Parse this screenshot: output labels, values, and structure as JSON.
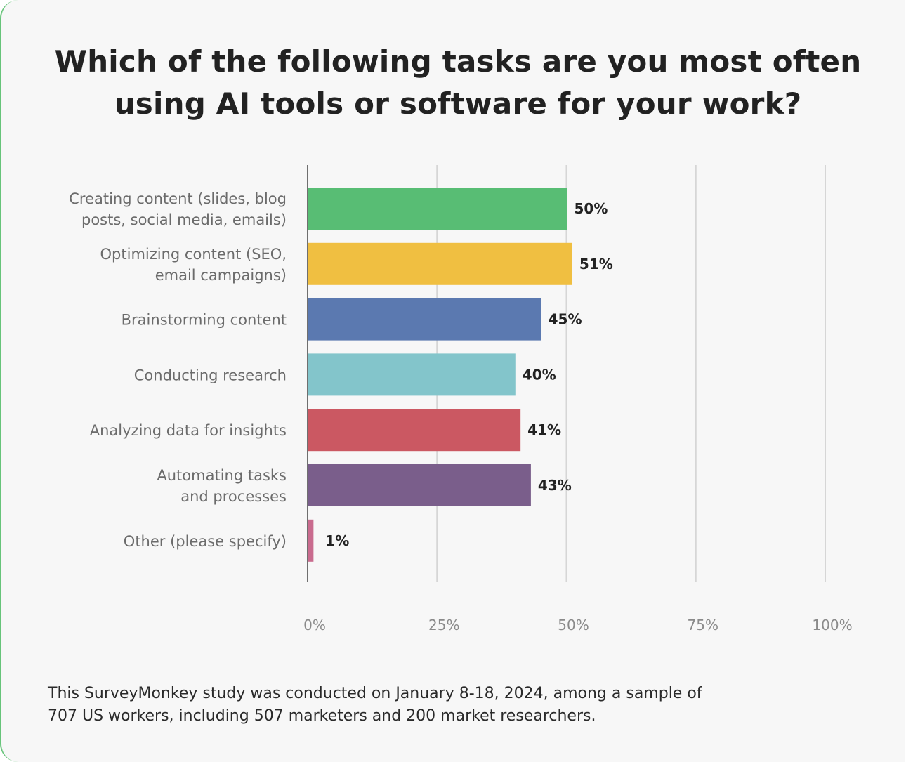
{
  "chart_data": {
    "type": "bar",
    "orientation": "horizontal",
    "title": "Which of the following tasks are you most often using AI tools or software for your work?",
    "title_lines": [
      "Which of the following tasks are you most often",
      "using AI tools or software for your work?"
    ],
    "categories": [
      "Creating content (slides, blog posts, social media, emails)",
      "Optimizing content (SEO, email campaigns)",
      "Brainstorming content",
      "Conducting research",
      "Analyzing data for insights",
      "Automating tasks and processes",
      "Other (please specify)"
    ],
    "category_lines": [
      [
        "Creating content (slides, blog",
        "posts, social media, emails)"
      ],
      [
        "Optimizing content (SEO,",
        "email campaigns)"
      ],
      [
        "Brainstorming content"
      ],
      [
        "Conducting research"
      ],
      [
        "Analyzing data for insights"
      ],
      [
        "Automating tasks",
        "and processes"
      ],
      [
        "Other (please specify)"
      ]
    ],
    "values": [
      50,
      51,
      45,
      40,
      41,
      43,
      1
    ],
    "value_labels": [
      "50%",
      "51%",
      "45%",
      "40%",
      "41%",
      "43%",
      "1%"
    ],
    "colors": [
      "#58bd74",
      "#f0bf41",
      "#5b79b0",
      "#83c5cb",
      "#cb5862",
      "#7a5e8b",
      "#c96b8e"
    ],
    "xlim": [
      0,
      100
    ],
    "xticks": [
      0,
      25,
      50,
      75,
      100
    ],
    "xtick_labels": [
      "0%",
      "25%",
      "50%",
      "75%",
      "100%"
    ],
    "grid": "vertical",
    "legend": "none"
  },
  "footnote_lines": [
    "This SurveyMonkey study was conducted on January 8-18, 2024, among a sample of",
    "707 US workers, including 507 marketers and 200 market researchers."
  ]
}
